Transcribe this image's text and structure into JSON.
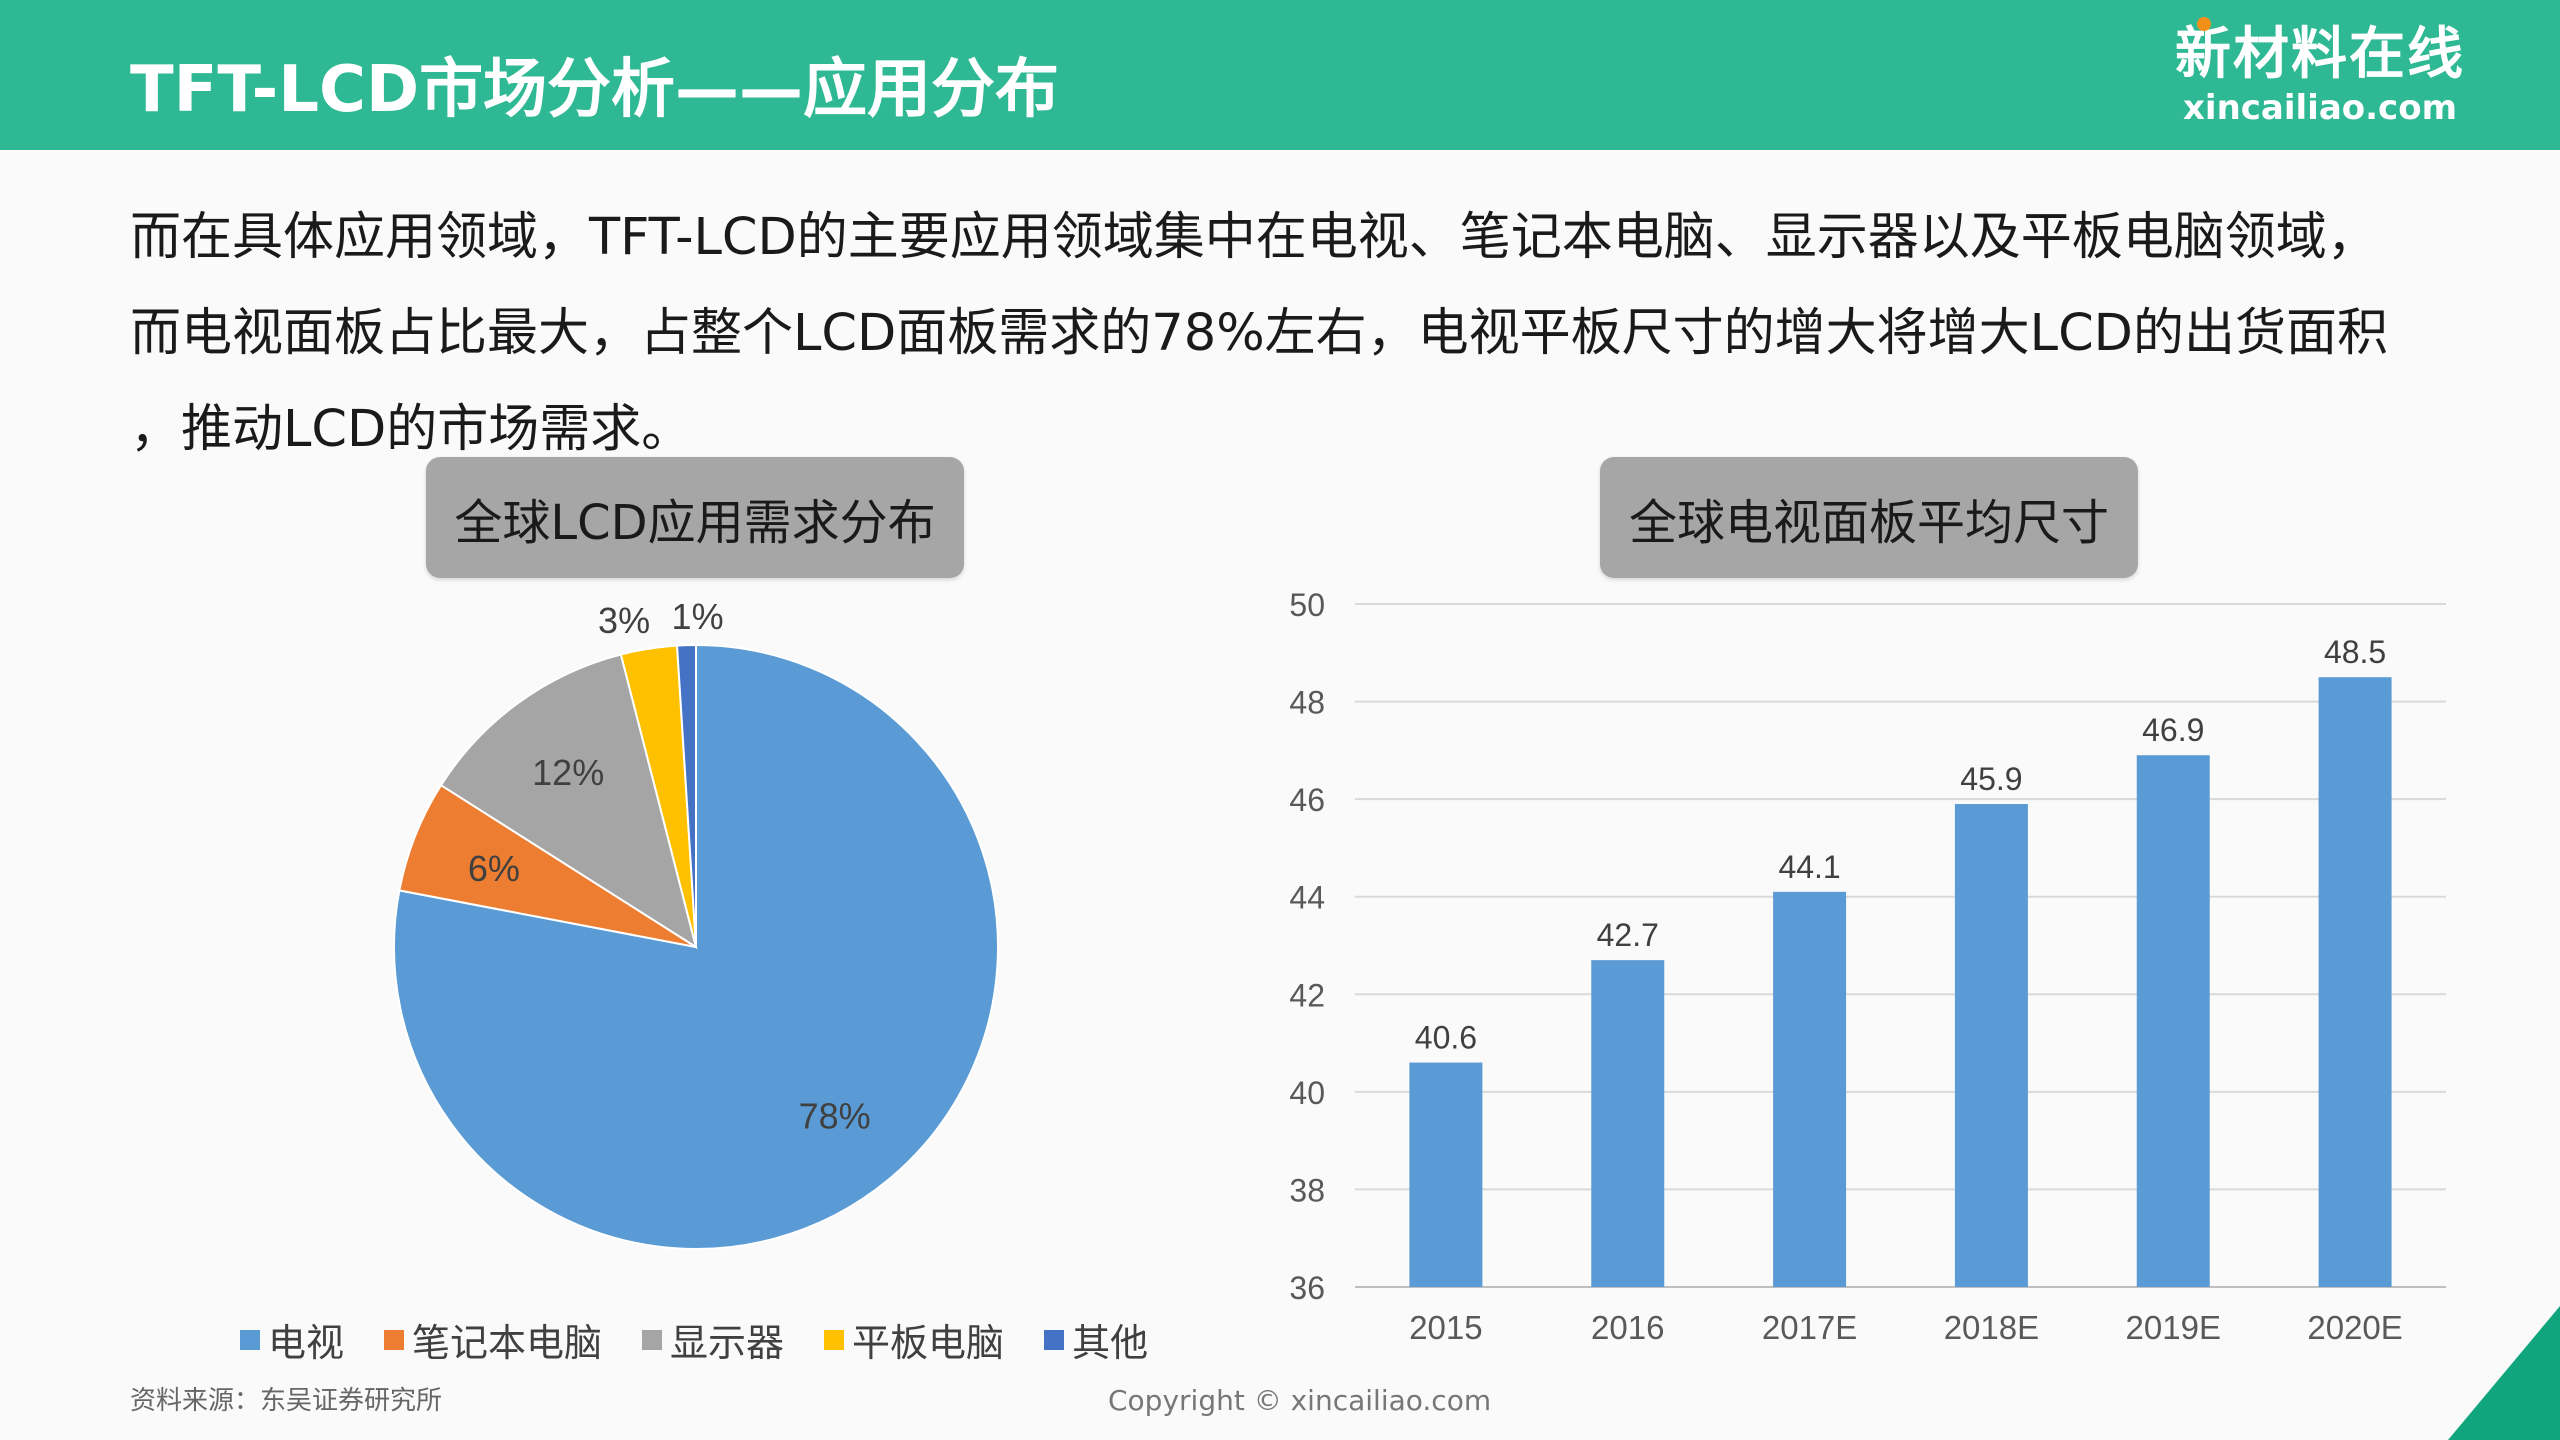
{
  "header": {
    "title": "TFT-LCD市场分析——应用分布",
    "logo_cn": "新材料在线",
    "logo_en": "xincailiao.com"
  },
  "paragraph": {
    "line1": "而在具体应用领域，TFT-LCD的主要应用领域集中在电视、笔记本电脑、显示器以及平板电脑领域，",
    "line2": "而电视面板占比最大，占整个LCD面板需求的78%左右，电视平板尺寸的增大将增大LCD的出货面积",
    "line3": "，推动LCD的市场需求。"
  },
  "chart_data": [
    {
      "type": "pie",
      "title": "全球LCD应用需求分布",
      "categories": [
        "电视",
        "笔记本电脑",
        "显示器",
        "平板电脑",
        "其他"
      ],
      "values": [
        78,
        6,
        12,
        3,
        1
      ],
      "labels": [
        "78%",
        "6%",
        "12%",
        "3%",
        "1%"
      ],
      "colors": [
        "#5b9bd5",
        "#ed7d31",
        "#a5a5a5",
        "#ffc000",
        "#4472c4"
      ],
      "legend": "bottom"
    },
    {
      "type": "bar",
      "title": "全球电视面板平均尺寸",
      "categories": [
        "2015",
        "2016",
        "2017E",
        "2018E",
        "2019E",
        "2020E"
      ],
      "values": [
        40.6,
        42.7,
        44.1,
        45.9,
        46.9,
        48.5
      ],
      "ylim": [
        36,
        50
      ],
      "yticks": [
        36,
        38,
        40,
        42,
        44,
        46,
        48,
        50
      ],
      "color": "#5b9bd5",
      "grid": true
    }
  ],
  "footer": {
    "source": "资料来源：东吴证券研究所",
    "copyright": "Copyright © xincailiao.com"
  }
}
